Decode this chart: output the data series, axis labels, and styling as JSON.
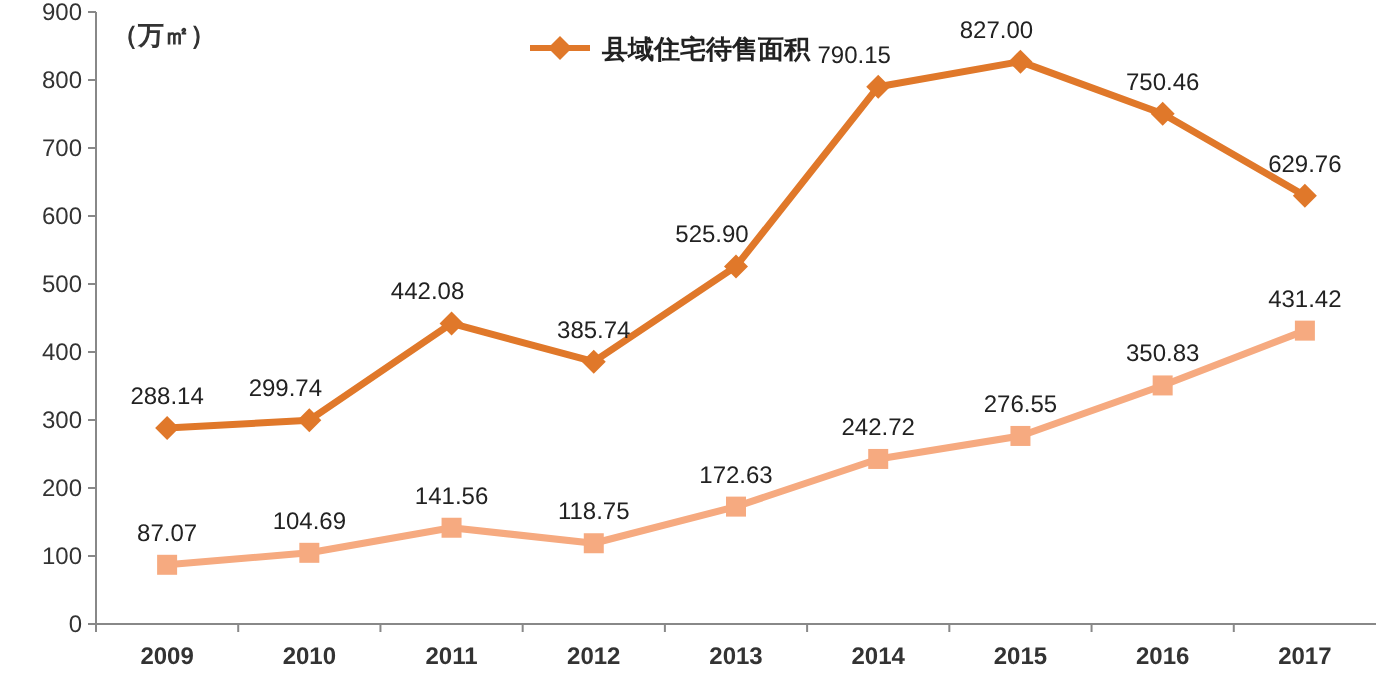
{
  "chart_data": {
    "type": "line",
    "ylabel": "（万㎡）",
    "categories": [
      "2009",
      "2010",
      "2011",
      "2012",
      "2013",
      "2014",
      "2015",
      "2016",
      "2017"
    ],
    "series": [
      {
        "name": "县域住宅待售面积",
        "color": "#e0782a",
        "marker": "diamond",
        "values": [
          288.14,
          299.74,
          442.08,
          385.74,
          525.9,
          790.15,
          827.0,
          750.46,
          629.76
        ],
        "value_labels": [
          "288.14",
          "299.74",
          "442.08",
          "385.74",
          "525.90",
          "790.15",
          "827.00",
          "750.46",
          "629.76"
        ]
      },
      {
        "color": "#f6aa80",
        "marker": "square",
        "values": [
          87.07,
          104.69,
          141.56,
          118.75,
          172.63,
          242.72,
          276.55,
          350.83,
          431.42
        ],
        "value_labels": [
          "87.07",
          "104.69",
          "141.56",
          "118.75",
          "172.63",
          "242.72",
          "276.55",
          "350.83",
          "431.42"
        ]
      }
    ],
    "ylim": [
      0,
      900
    ],
    "yticks": [
      0,
      100,
      200,
      300,
      400,
      500,
      600,
      700,
      800,
      900
    ],
    "grid": false,
    "legend": "top",
    "line_style": "solid"
  }
}
